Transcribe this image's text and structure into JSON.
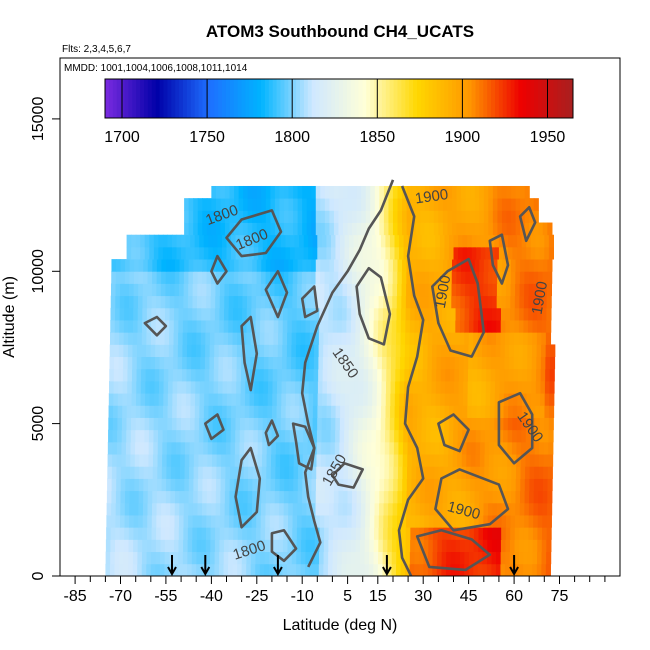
{
  "chart_data": {
    "type": "heatmap",
    "title": "ATOM3 Southbound CH4_UCATS",
    "flights_note": "Flts: 2,3,4,5,6,7",
    "dates_note": "MMDD: 1001,1004,1006,1008,1011,1014",
    "xlabel": "Latitude (deg N)",
    "ylabel": "Altitude (m)",
    "xlim": [
      -90,
      95
    ],
    "ylim": [
      0,
      17000
    ],
    "x_ticks": [
      -85,
      -70,
      -55,
      -40,
      -25,
      -10,
      5,
      15,
      30,
      45,
      60,
      75
    ],
    "y_ticks": [
      0,
      5000,
      10000,
      15000
    ],
    "colorbar": {
      "range": [
        1690,
        1965
      ],
      "ticks": [
        1700,
        1750,
        1800,
        1850,
        1900,
        1950
      ],
      "colors": [
        "#7b2be0",
        "#0000a8",
        "#1e6fff",
        "#00b4ff",
        "#cfe8ff",
        "#ffffd8",
        "#ffd700",
        "#ff9800",
        "#ee0000",
        "#a82020"
      ]
    },
    "contour_labels": [
      {
        "text": "1800",
        "lat": -36,
        "alt": 11700
      },
      {
        "text": "1800",
        "lat": -26,
        "alt": 10900
      },
      {
        "text": "1800",
        "lat": -27,
        "alt": 700
      },
      {
        "text": "1850",
        "lat": 3,
        "alt": 6900
      },
      {
        "text": "1850",
        "lat": 2,
        "alt": 3400
      },
      {
        "text": "1900",
        "lat": 33,
        "alt": 12300
      },
      {
        "text": "1900",
        "lat": 38,
        "alt": 9300
      },
      {
        "text": "1900",
        "lat": 70,
        "alt": 9100
      },
      {
        "text": "1900",
        "lat": 64,
        "alt": 4800
      },
      {
        "text": "1900",
        "lat": 43,
        "alt": 2000
      }
    ],
    "profile_markers_lat": [
      -53,
      -42,
      -18,
      18,
      60
    ]
  }
}
